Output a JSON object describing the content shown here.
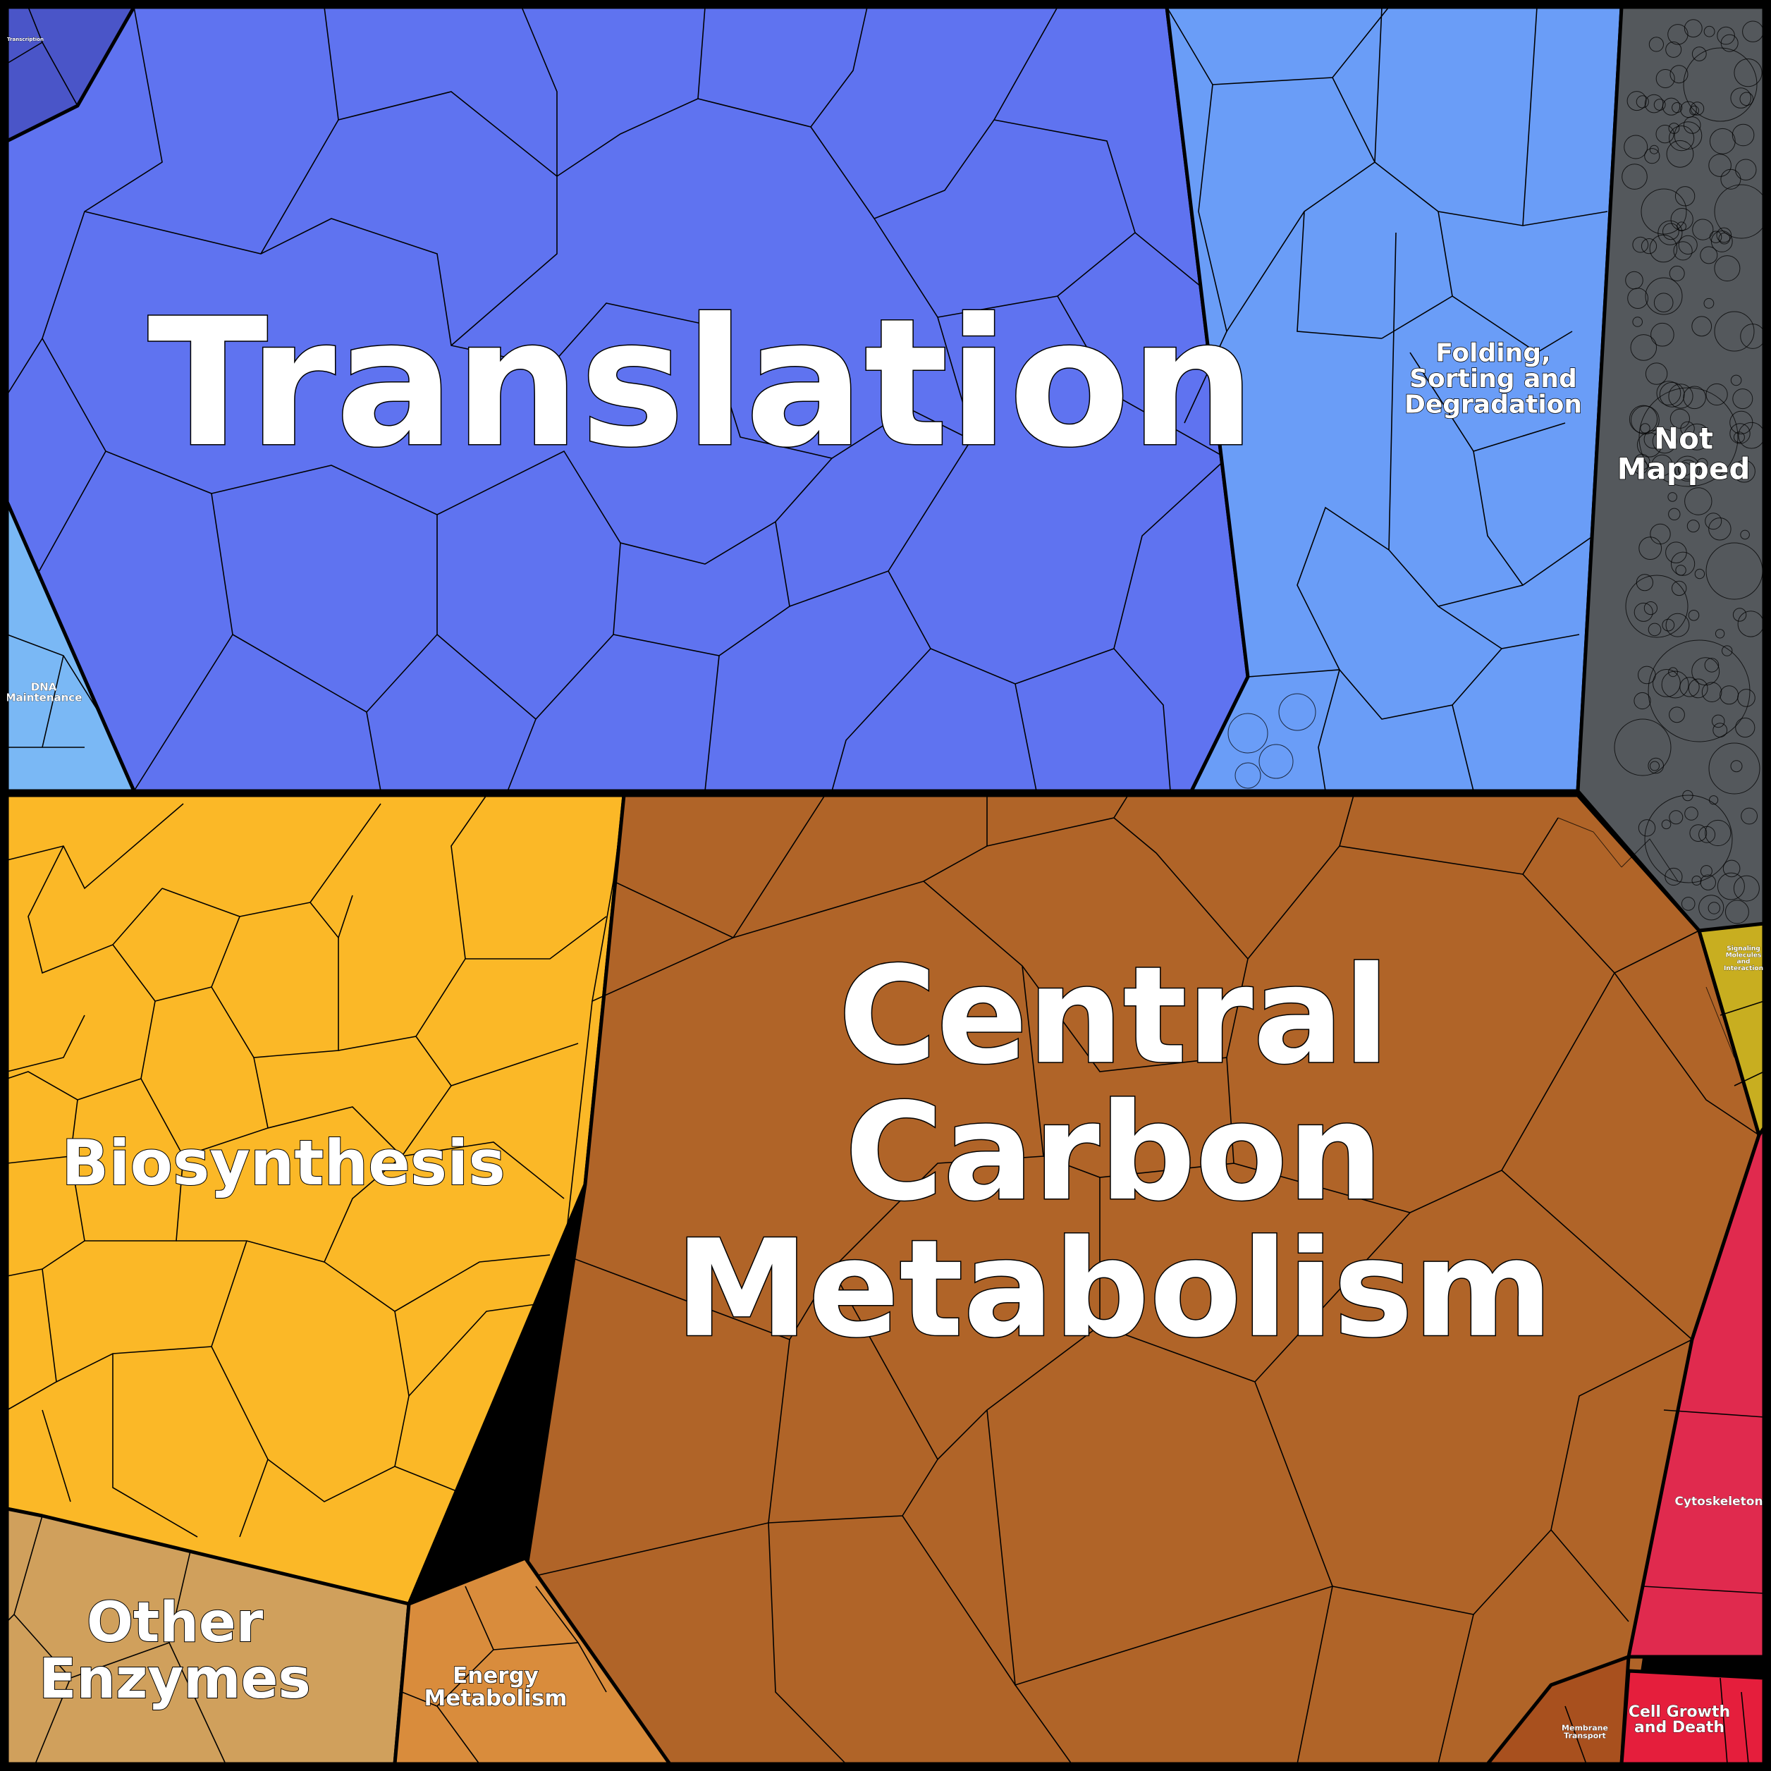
{
  "regions": [
    {
      "key": "translation",
      "label_lines": [
        "Translation"
      ],
      "color": "#5f73f0"
    },
    {
      "key": "folding",
      "label_lines": [
        "Folding,",
        "Sorting and",
        "Degradation"
      ],
      "color": "#6a9df7"
    },
    {
      "key": "not_mapped",
      "label_lines": [
        "Not",
        "Mapped"
      ],
      "color": "#54585c"
    },
    {
      "key": "transcription",
      "label_lines": [
        "Transcription"
      ],
      "color": "#4a55c8"
    },
    {
      "key": "dna_maintenance",
      "label_lines": [
        "DNA",
        "Maintenance"
      ],
      "color": "#7ab8f5"
    },
    {
      "key": "biosynthesis",
      "label_lines": [
        "Biosynthesis"
      ],
      "color": "#fbb827"
    },
    {
      "key": "central_carbon",
      "label_lines": [
        "Central",
        "Carbon",
        "Metabolism"
      ],
      "color": "#b06428"
    },
    {
      "key": "other_enzymes",
      "label_lines": [
        "Other",
        "Enzymes"
      ],
      "color": "#d0a05c"
    },
    {
      "key": "energy_metabolism",
      "label_lines": [
        "Energy",
        "Metabolism"
      ],
      "color": "#d98c3c"
    },
    {
      "key": "signaling",
      "label_lines": [
        "Signaling",
        "Molecules",
        "and",
        "Interaction"
      ],
      "color": "#c8ae20"
    },
    {
      "key": "cytoskeleton",
      "label_lines": [
        "Cytoskeleton"
      ],
      "color": "#e02a4e"
    },
    {
      "key": "membrane_transport",
      "label_lines": [
        "Membrane",
        "Transport"
      ],
      "color": "#a8501e"
    },
    {
      "key": "cell_growth",
      "label_lines": [
        "Cell Growth",
        "and Death"
      ],
      "color": "#e51e3c"
    }
  ]
}
